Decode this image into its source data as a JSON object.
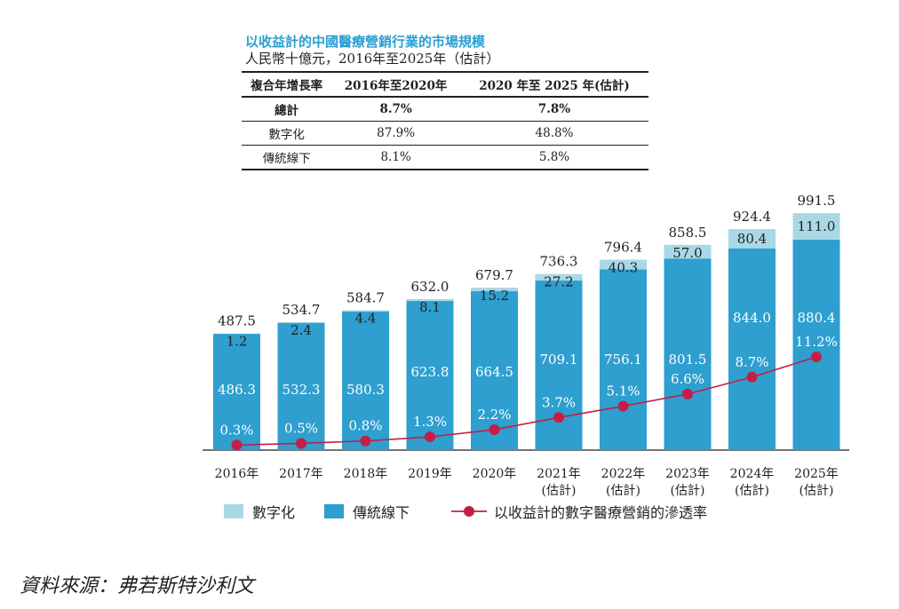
{
  "header": {
    "title": "以收益計的中國醫療營銷行業的市場規模",
    "subtitle": "人民幣十億元，2016年至2025年（估計）"
  },
  "cagr_table": {
    "columns": [
      "複合年增長率",
      "2016年至2020年",
      "2020 年至 2025 年(估計)"
    ],
    "rows": [
      {
        "label": "總計",
        "v1": "8.7%",
        "v2": "7.8%"
      },
      {
        "label": "數字化",
        "v1": "87.9%",
        "v2": "48.8%"
      },
      {
        "label": "傳統線下",
        "v1": "8.1%",
        "v2": "5.8%"
      }
    ]
  },
  "colors": {
    "digital": "#a9d8e6",
    "offline": "#2e9fcf",
    "penetration": "#c41e46",
    "title": "#2a9fd1"
  },
  "chart_data": {
    "type": "bar",
    "stacked": true,
    "categories": [
      "2016年",
      "2017年",
      "2018年",
      "2019年",
      "2020年",
      "2021年",
      "2022年",
      "2023年",
      "2024年",
      "2025年"
    ],
    "category_notes": [
      "",
      "",
      "",
      "",
      "",
      "(估計)",
      "(估計)",
      "(估計)",
      "(估計)",
      "(估計)"
    ],
    "series": [
      {
        "name": "傳統線下",
        "values": [
          486.3,
          532.3,
          580.3,
          623.8,
          664.5,
          709.1,
          756.1,
          801.5,
          844.0,
          880.4
        ]
      },
      {
        "name": "數字化",
        "values": [
          1.2,
          2.4,
          4.4,
          8.1,
          15.2,
          27.2,
          40.3,
          57.0,
          80.4,
          111.0
        ]
      }
    ],
    "totals": [
      487.5,
      534.7,
      584.7,
      632.0,
      679.7,
      736.3,
      796.4,
      858.5,
      924.4,
      991.5
    ],
    "line_series": {
      "name": "以收益計的數字醫療營銷的滲透率",
      "values": [
        0.3,
        0.5,
        0.8,
        1.3,
        2.2,
        3.7,
        5.1,
        6.6,
        8.7,
        11.2
      ],
      "labels": [
        "0.3%",
        "0.5%",
        "0.8%",
        "1.3%",
        "2.2%",
        "3.7%",
        "5.1%",
        "6.6%",
        "8.7%",
        "11.2%"
      ]
    },
    "legend": [
      "數字化",
      "傳統線下",
      "以收益計的數字醫療營銷的滲透率"
    ],
    "legend_position": "bottom"
  },
  "source": "資料來源：弗若斯特沙利文"
}
